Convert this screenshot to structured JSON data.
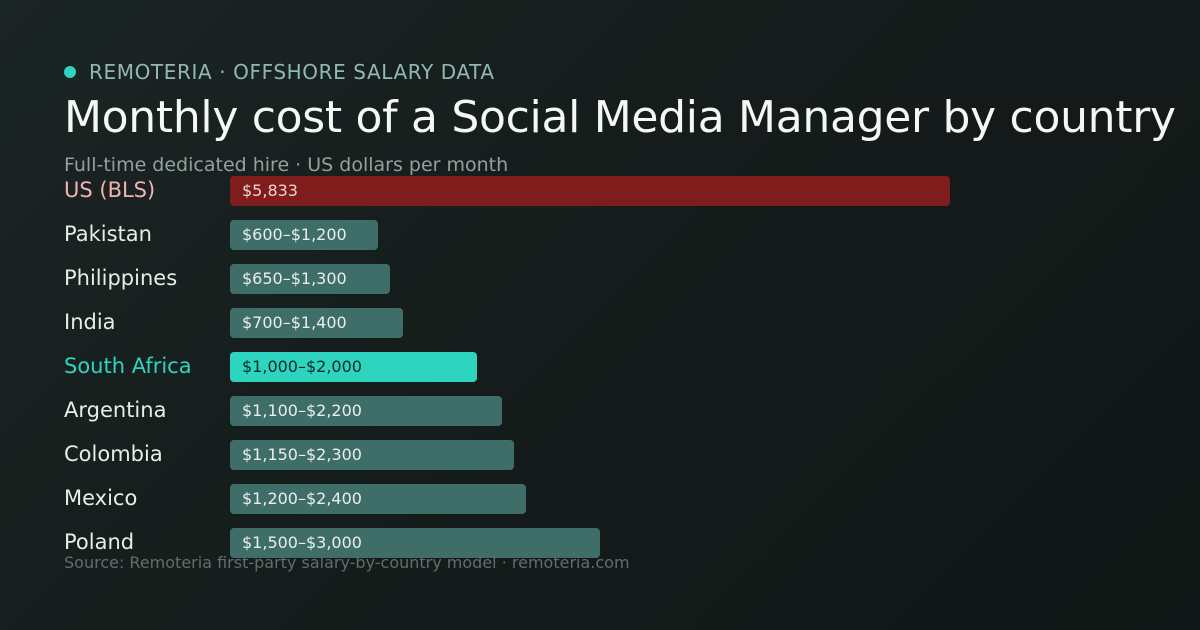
{
  "header": {
    "brand": "REMOTERIA · OFFSHORE SALARY DATA",
    "title": "Monthly cost of a Social Media Manager by country",
    "subtitle": "Full-time dedicated hire · US dollars per month"
  },
  "chart_data": {
    "type": "bar",
    "orientation": "horizontal",
    "title": "Monthly cost of a Social Media Manager by country",
    "subtitle": "Full-time dedicated hire · US dollars per month",
    "unit": "US dollars per month",
    "categories": [
      "US (BLS)",
      "Pakistan",
      "Philippines",
      "India",
      "South Africa",
      "Argentina",
      "Colombia",
      "Mexico",
      "Poland"
    ],
    "series": [
      {
        "values": [
          5833,
          1200,
          1300,
          1400,
          2000,
          2200,
          2300,
          2400,
          3000
        ],
        "ranges": [
          [
            5833,
            5833
          ],
          [
            600,
            1200
          ],
          [
            650,
            1300
          ],
          [
            700,
            1400
          ],
          [
            1000,
            2000
          ],
          [
            1100,
            2200
          ],
          [
            1150,
            2300
          ],
          [
            1200,
            2400
          ],
          [
            1500,
            3000
          ]
        ],
        "data_labels": [
          "$5,833",
          "$600–$1,200",
          "$650–$1,300",
          "$700–$1,400",
          "$1,000–$2,000",
          "$1,100–$2,200",
          "$1,150–$2,300",
          "$1,200–$2,400",
          "$1,500–$3,000"
        ]
      }
    ],
    "highlight": {
      "US (BLS)": "#7f1d1d",
      "South Africa": "#2dd4bf"
    },
    "default_bar_color": "#3f6e69",
    "xlim": [
      0,
      5833
    ],
    "grid": false,
    "legend": "none"
  },
  "footer": {
    "source": "Source: Remoteria first-party salary-by-country model · remoteria.com"
  },
  "colors": {
    "accent": "#2dd4bf",
    "us_bar": "#7f1d1d",
    "bar": "#3f6e69",
    "background": "#161e1d"
  }
}
